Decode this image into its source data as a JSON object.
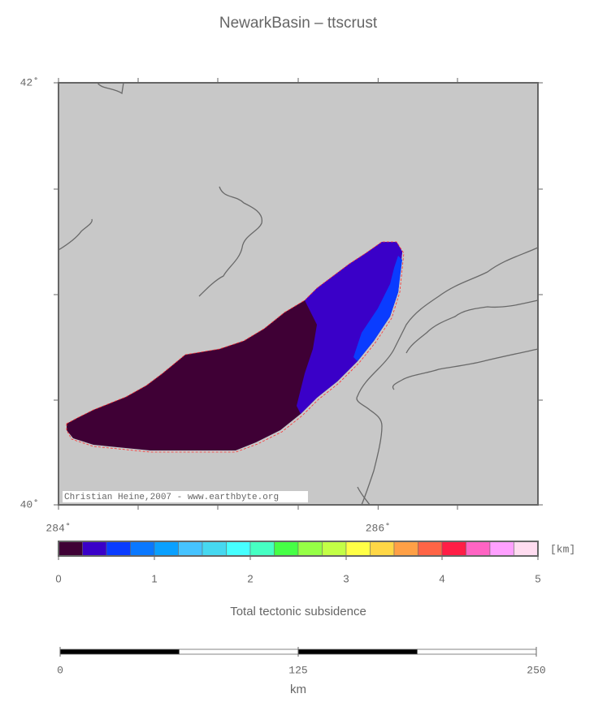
{
  "map": {
    "title": "NewarkBasin – ttscrust",
    "lonlim": [
      284,
      287
    ],
    "latlim": [
      40,
      42
    ],
    "lonticks": [
      {
        "value": 284,
        "label": "284˚"
      },
      {
        "value": 286,
        "label": "286˚"
      }
    ],
    "latticks": [
      {
        "value": 40,
        "label": "40˚"
      },
      {
        "value": 42,
        "label": "42˚"
      }
    ],
    "credit": "Christian Heine,2007 - www.earthbyte.org",
    "colorbar": {
      "label": "Total tectonic subsidence",
      "unit": "[km]",
      "range": [
        0,
        5
      ],
      "ticks": [
        0,
        1,
        2,
        3,
        4,
        5
      ],
      "colors": [
        "#3f0035",
        "#3a00c8",
        "#0a3cff",
        "#0a78ff",
        "#0aa0ff",
        "#46c3ff",
        "#46d8f0",
        "#46ffff",
        "#46ffc3",
        "#46ff46",
        "#96ff46",
        "#c3ff46",
        "#ffff46",
        "#ffd746",
        "#ffa046",
        "#ff6446",
        "#ff1e46",
        "#ff64c3",
        "#ffa0ff",
        "#ffdcf0"
      ]
    },
    "scalebar": {
      "unit": "km",
      "range": [
        0,
        250
      ],
      "ticks": [
        0,
        125,
        250
      ]
    }
  }
}
